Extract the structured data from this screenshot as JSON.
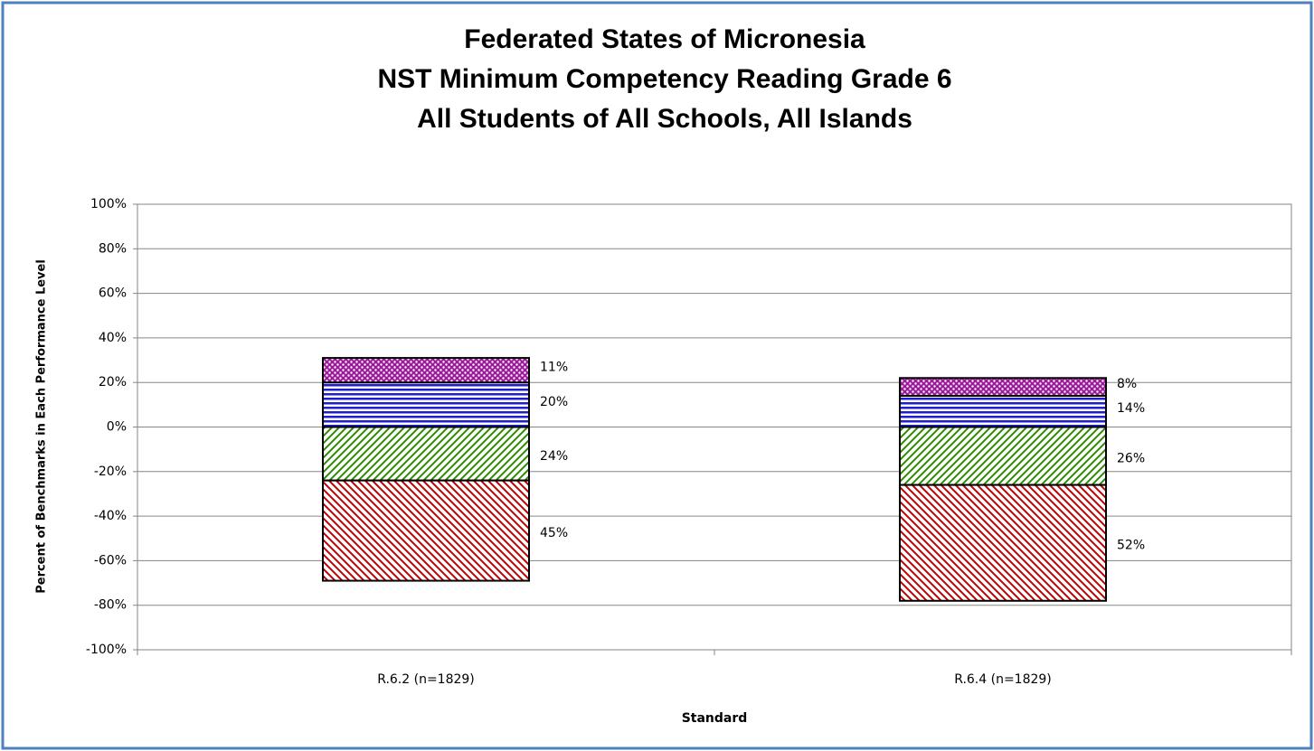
{
  "chart_data": {
    "type": "diverging-stacked-bar",
    "title": [
      "Federated States of Micronesia",
      "NST Minimum Competency Reading Grade 6",
      "All Students of All Schools, All Islands"
    ],
    "x_label": "Standard",
    "y_label": "Percent of Benchmarks in Each Performance Level",
    "categories": [
      "R.6.2 (n=1829)",
      "R.6.4 (n=1829)"
    ],
    "series": [
      {
        "color": "#c00000",
        "pattern": "diagonal-down",
        "values": [
          -24,
          -26
        ],
        "value_labels": [
          "24%",
          "26%"
        ]
      },
      {
        "color": "#c00000",
        "pattern": "diagonal-down",
        "values": [
          -45,
          -52
        ],
        "value_labels": [
          "45%",
          "52%"
        ]
      },
      {
        "color": "#1f1fd0",
        "pattern": "horizontal",
        "values": [
          20,
          14
        ],
        "value_labels": [
          "20%",
          "14%"
        ]
      },
      {
        "color": "#9b1b9b",
        "pattern": "dots",
        "values": [
          11,
          8
        ],
        "value_labels": [
          "11%",
          "8%"
        ]
      }
    ],
    "ylim": [
      -100,
      100
    ],
    "yticks": [
      {
        "value": -100,
        "label": "-100%"
      },
      {
        "value": -80,
        "label": "-80%"
      },
      {
        "value": -60,
        "label": "-60%"
      },
      {
        "value": -40,
        "label": "-40%"
      },
      {
        "value": -20,
        "label": "-20%"
      },
      {
        "value": 0,
        "label": "0%"
      },
      {
        "value": 20,
        "label": "20%"
      },
      {
        "value": 40,
        "label": "40%"
      },
      {
        "value": 60,
        "label": "60%"
      },
      {
        "value": 80,
        "label": "80%"
      },
      {
        "value": 100,
        "label": "100%"
      }
    ],
    "grid": true
  }
}
